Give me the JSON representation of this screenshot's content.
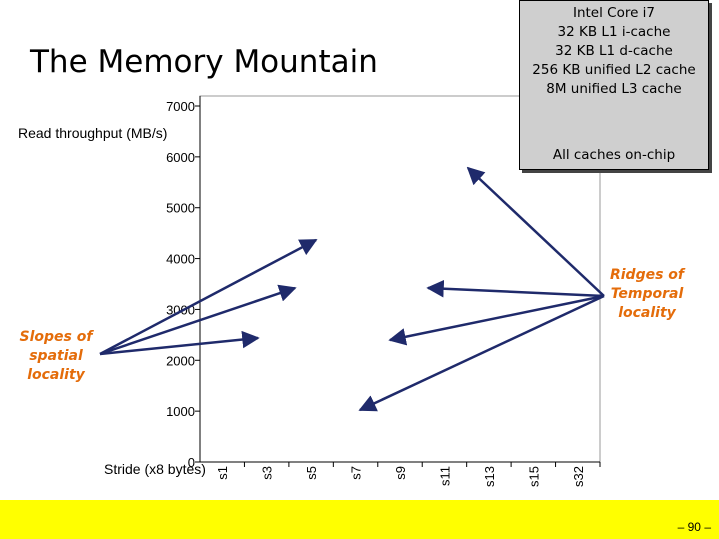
{
  "slide": {
    "title": "The Memory Mountain",
    "page_number": "– 90 –",
    "footer_color": "#ffff00"
  },
  "info_box": {
    "lines": [
      "Intel Core i7",
      "32 KB L1  i-cache",
      "32 KB L1 d-cache",
      "256 KB unified L2 cache",
      "8M unified L3 cache"
    ],
    "note": "All caches on-chip",
    "background": "#cfcfcf"
  },
  "annotations": {
    "slopes": [
      "Slopes of",
      "spatial",
      "locality"
    ],
    "ridges": [
      "Ridges of",
      "Temporal",
      "locality"
    ],
    "color": "#e46c0a"
  },
  "chart_data": {
    "type": "line",
    "title": "The Memory Mountain",
    "ylabel": "Read  throughput (MB/s)",
    "xlabel": "Stride (x8 bytes)",
    "ylim": [
      0,
      7000
    ],
    "yticks": [
      0,
      1000,
      2000,
      3000,
      4000,
      5000,
      6000,
      7000
    ],
    "categories": [
      "s1",
      "s3",
      "s5",
      "s7",
      "s9",
      "s11",
      "s13",
      "s15",
      "s32"
    ],
    "grid": false
  }
}
